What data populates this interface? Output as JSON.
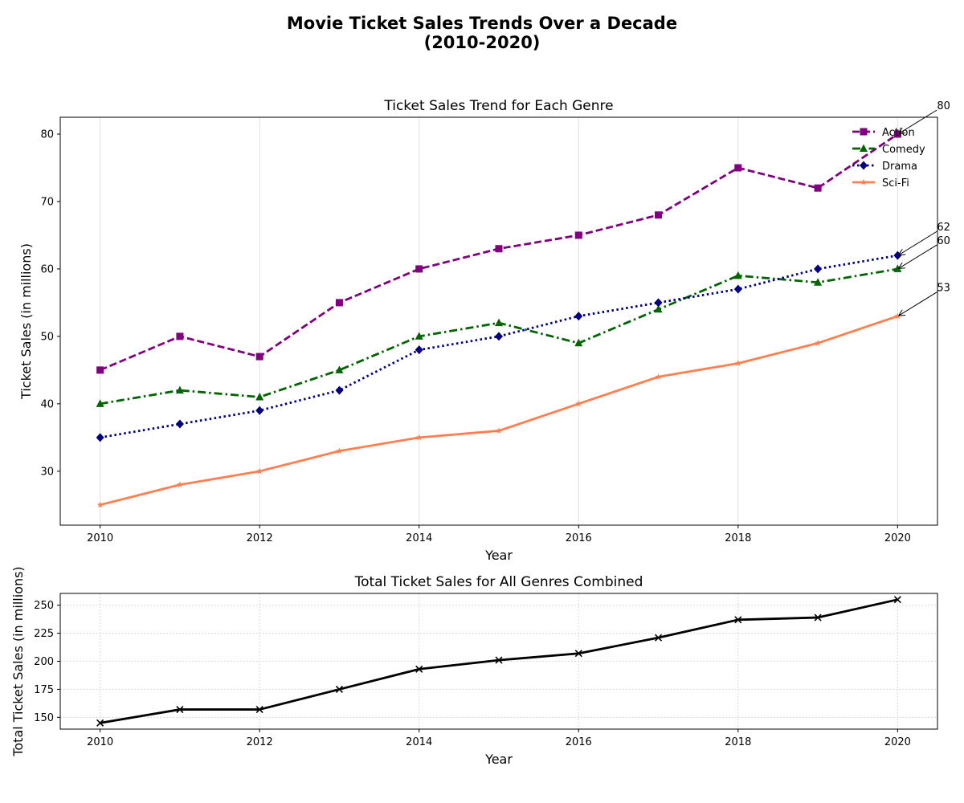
{
  "figure": {
    "title_line1": "Movie Ticket Sales Trends Over a Decade",
    "title_line2": "(2010-2020)"
  },
  "chart_data": [
    {
      "type": "line",
      "title": "Ticket Sales Trend for Each Genre",
      "xlabel": "Year",
      "ylabel": "Ticket Sales (in millions)",
      "x": [
        2010,
        2011,
        2012,
        2013,
        2014,
        2015,
        2016,
        2017,
        2018,
        2019,
        2020
      ],
      "xlim": [
        2009.5,
        2020.5
      ],
      "ylim": [
        22,
        82.5
      ],
      "xticks": [
        2010,
        2012,
        2014,
        2016,
        2018,
        2020
      ],
      "yticks": [
        30,
        40,
        50,
        60,
        70,
        80
      ],
      "grid": "vertical",
      "legend": "top-right",
      "series": [
        {
          "name": "Action",
          "color": "#800080",
          "marker": "square",
          "linestyle": "dashed",
          "values": [
            45,
            50,
            47,
            55,
            60,
            63,
            65,
            68,
            75,
            72,
            80
          ]
        },
        {
          "name": "Comedy",
          "color": "#006400",
          "marker": "triangle",
          "linestyle": "dashdot",
          "values": [
            40,
            42,
            41,
            45,
            50,
            52,
            49,
            54,
            59,
            58,
            60
          ]
        },
        {
          "name": "Drama",
          "color": "#000080",
          "marker": "diamond",
          "linestyle": "dotted",
          "values": [
            35,
            37,
            39,
            42,
            48,
            50,
            53,
            55,
            57,
            60,
            62
          ]
        },
        {
          "name": "Sci-Fi",
          "color": "#ff7f50",
          "marker": "star",
          "linestyle": "solid",
          "values": [
            25,
            28,
            30,
            33,
            35,
            36,
            40,
            44,
            46,
            49,
            53
          ]
        }
      ],
      "annotations": [
        {
          "series": "Action",
          "x": 2020,
          "y": 80,
          "text": "80"
        },
        {
          "series": "Drama",
          "x": 2020,
          "y": 62,
          "text": "62"
        },
        {
          "series": "Comedy",
          "x": 2020,
          "y": 60,
          "text": "60"
        },
        {
          "series": "Sci-Fi",
          "x": 2020,
          "y": 53,
          "text": "53"
        }
      ]
    },
    {
      "type": "line",
      "title": "Total Ticket Sales for All Genres Combined",
      "xlabel": "Year",
      "ylabel": "Total Ticket Sales (in millions)",
      "x": [
        2010,
        2011,
        2012,
        2013,
        2014,
        2015,
        2016,
        2017,
        2018,
        2019,
        2020
      ],
      "xlim": [
        2009.5,
        2020.5
      ],
      "ylim": [
        139.5,
        260.5
      ],
      "xticks": [
        2010,
        2012,
        2014,
        2016,
        2018,
        2020
      ],
      "yticks": [
        150,
        175,
        200,
        225,
        250
      ],
      "grid": "both",
      "series": [
        {
          "name": "Total",
          "color": "#000000",
          "marker": "x",
          "linestyle": "solid",
          "values": [
            145,
            157,
            157,
            175,
            193,
            201,
            207,
            221,
            237,
            239,
            255
          ]
        }
      ]
    }
  ]
}
